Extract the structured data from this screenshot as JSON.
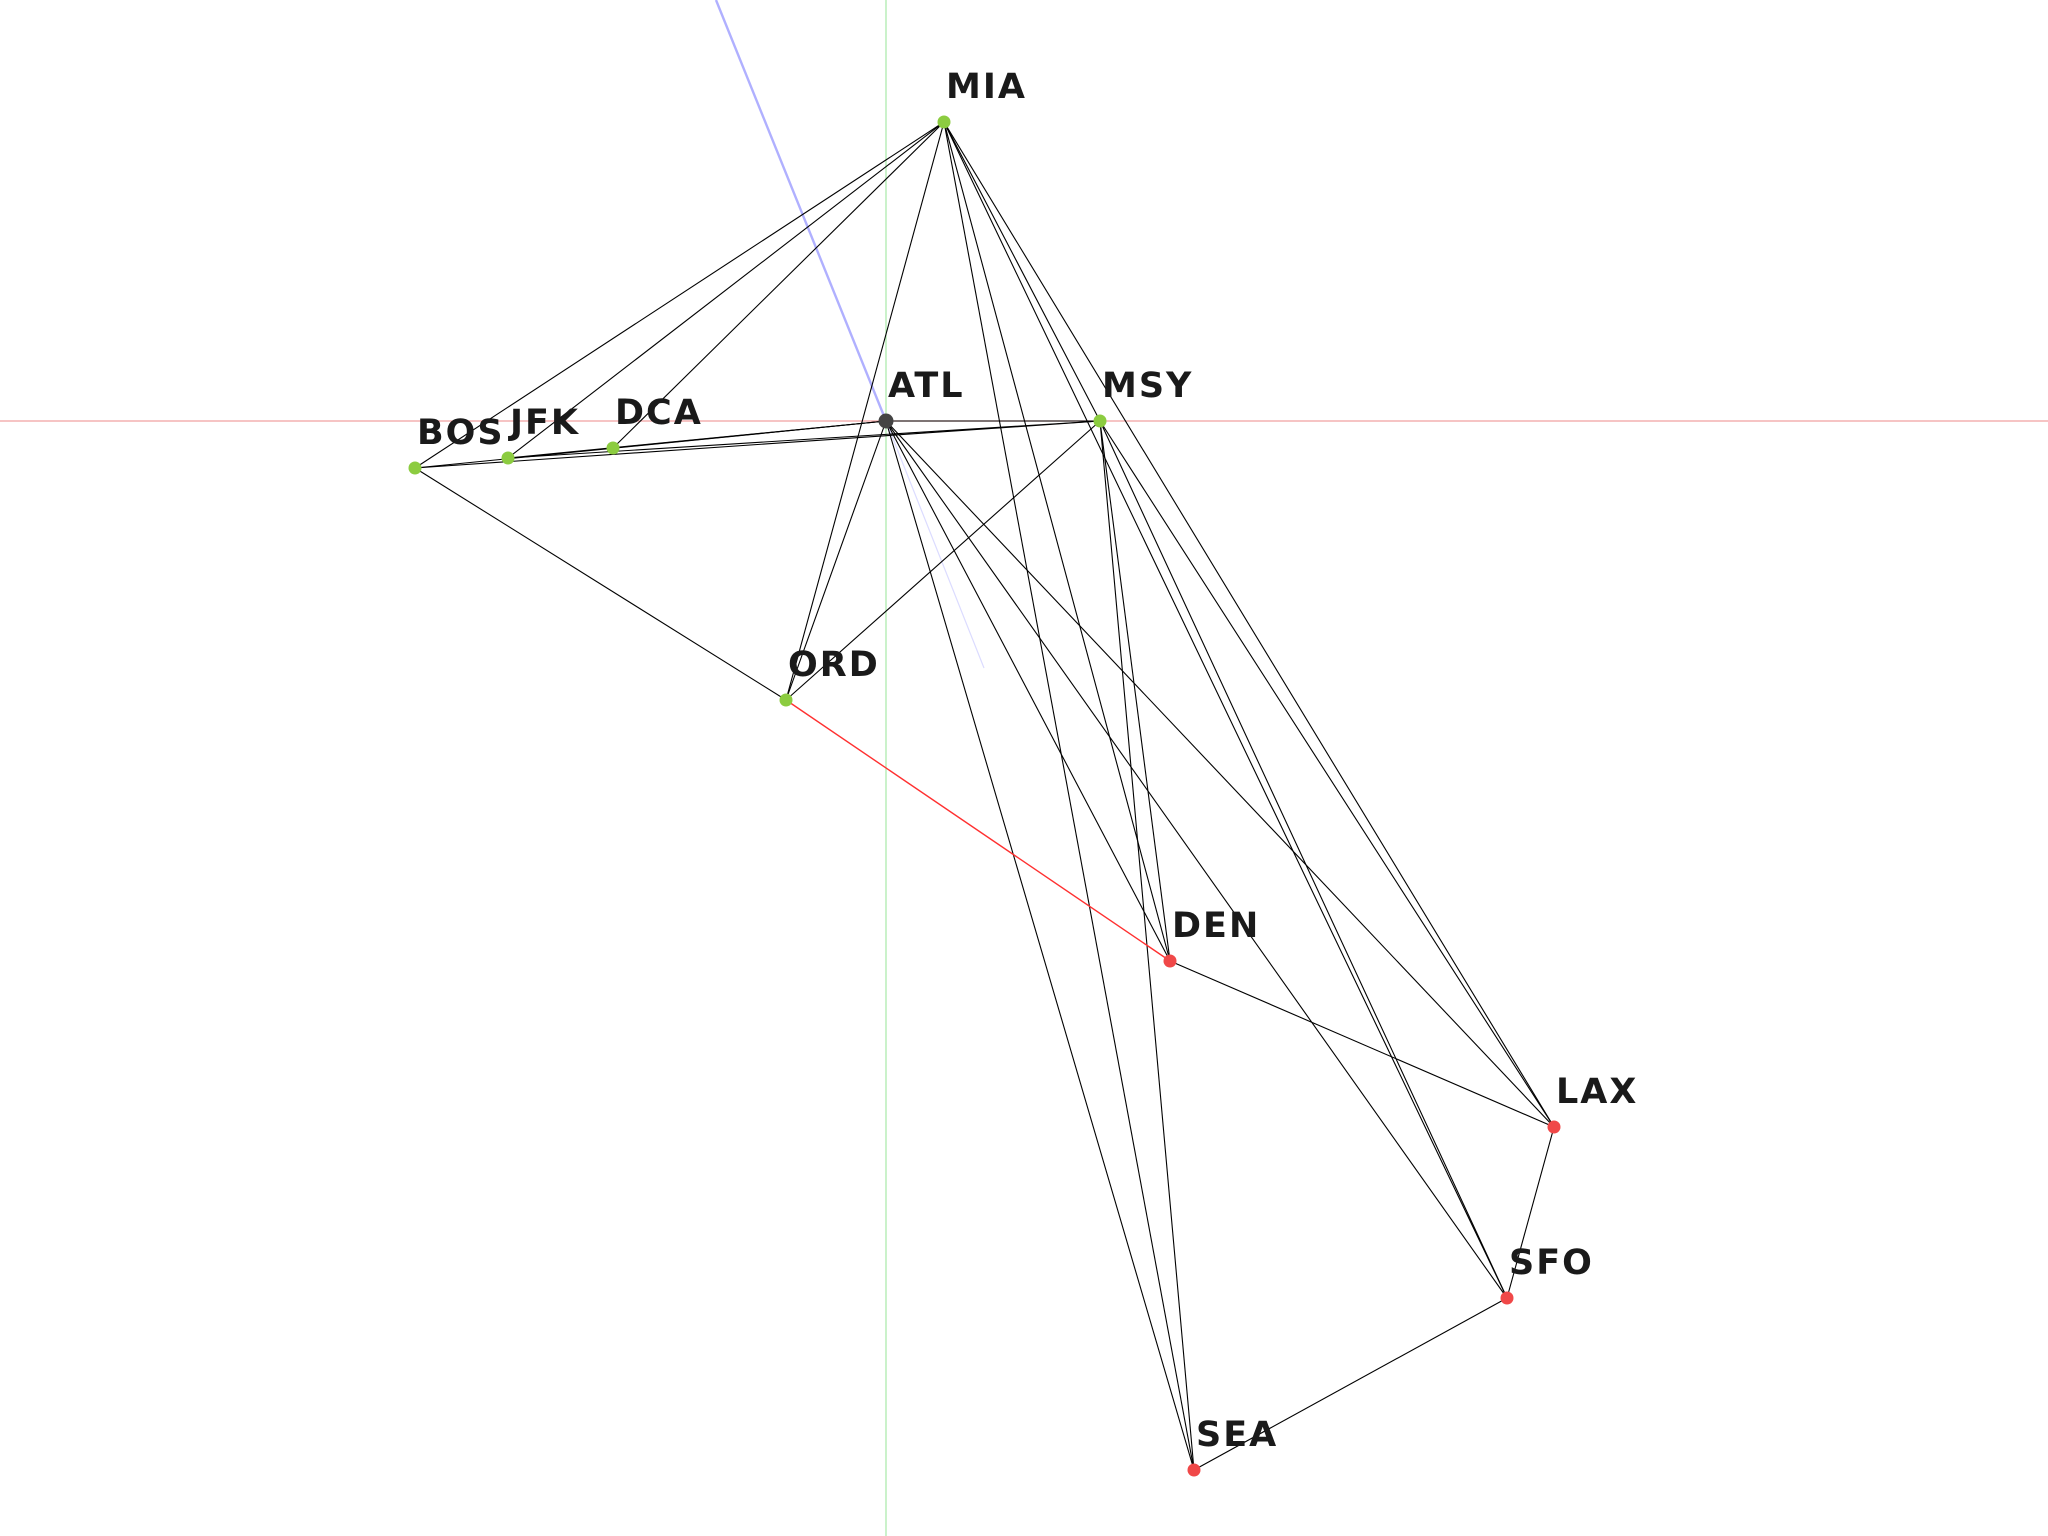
{
  "colors": {
    "background": "#ffffff",
    "x_axis": "#f0a0a0",
    "y_axis": "#a8e8a8",
    "view_ray": "#b0b0ff",
    "edge": "#000000",
    "highlight_edge": "#ff3030",
    "node_green": "#8ccc40",
    "node_red": "#f04848",
    "node_center": "#444444"
  },
  "icons": {
    "node": "circle-node",
    "edge": "straight-line"
  },
  "nodes": [
    {
      "id": "MIA",
      "label": "MIA",
      "kind": "green"
    },
    {
      "id": "ATL",
      "label": "ATL",
      "kind": "center"
    },
    {
      "id": "MSY",
      "label": "MSY",
      "kind": "green"
    },
    {
      "id": "BOS",
      "label": "BOS",
      "kind": "green"
    },
    {
      "id": "JFK",
      "label": "JFK",
      "kind": "green"
    },
    {
      "id": "DCA",
      "label": "DCA",
      "kind": "green"
    },
    {
      "id": "ORD",
      "label": "ORD",
      "kind": "green"
    },
    {
      "id": "DEN",
      "label": "DEN",
      "kind": "red"
    },
    {
      "id": "LAX",
      "label": "LAX",
      "kind": "red"
    },
    {
      "id": "SFO",
      "label": "SFO",
      "kind": "red"
    },
    {
      "id": "SEA",
      "label": "SEA",
      "kind": "red"
    }
  ],
  "edges": [
    [
      "MIA",
      "BOS"
    ],
    [
      "MIA",
      "JFK"
    ],
    [
      "MIA",
      "DCA"
    ],
    [
      "MIA",
      "ORD"
    ],
    [
      "MIA",
      "DEN"
    ],
    [
      "MIA",
      "SEA"
    ],
    [
      "MIA",
      "SFO"
    ],
    [
      "MIA",
      "LAX"
    ],
    [
      "MIA",
      "MSY"
    ],
    [
      "ATL",
      "BOS"
    ],
    [
      "ATL",
      "JFK"
    ],
    [
      "ATL",
      "DCA"
    ],
    [
      "ATL",
      "ORD"
    ],
    [
      "ATL",
      "DEN"
    ],
    [
      "ATL",
      "SEA"
    ],
    [
      "ATL",
      "SFO"
    ],
    [
      "ATL",
      "LAX"
    ],
    [
      "ATL",
      "MSY"
    ],
    [
      "MSY",
      "BOS"
    ],
    [
      "MSY",
      "JFK"
    ],
    [
      "MSY",
      "ORD"
    ],
    [
      "MSY",
      "DEN"
    ],
    [
      "MSY",
      "SEA"
    ],
    [
      "MSY",
      "SFO"
    ],
    [
      "MSY",
      "LAX"
    ],
    [
      "BOS",
      "ORD"
    ],
    [
      "DEN",
      "LAX"
    ],
    [
      "LAX",
      "SFO"
    ],
    [
      "SFO",
      "SEA"
    ]
  ],
  "highlight_edges": [
    [
      "ORD",
      "DEN"
    ]
  ]
}
